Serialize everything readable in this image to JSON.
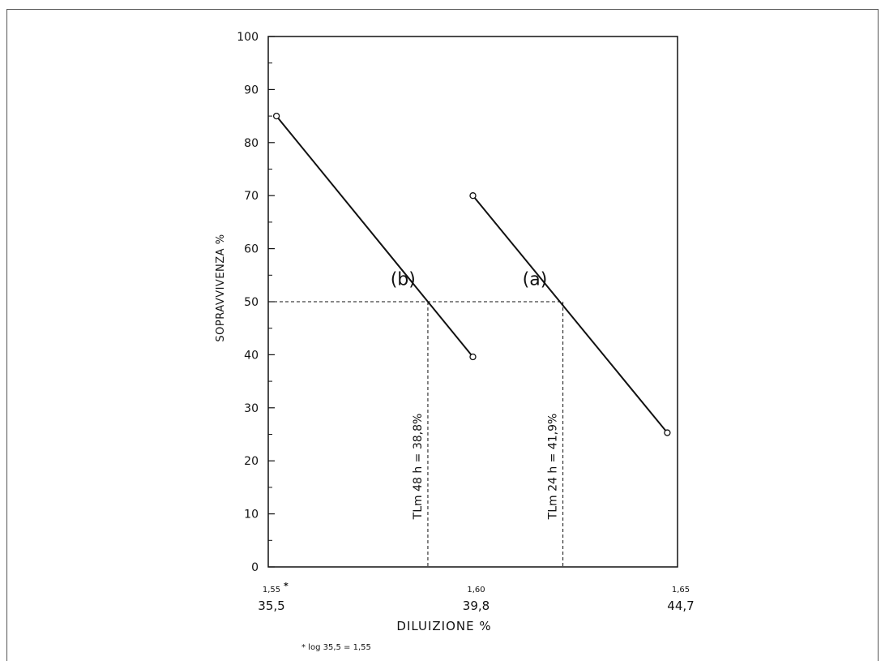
{
  "chart_data": {
    "type": "line",
    "xlabel": "DILUIZIONE %",
    "ylabel": "SOPRAVVIVENZA %",
    "x_scale": "log10",
    "xlim": [
      1.55,
      1.65
    ],
    "ylim": [
      0,
      100
    ],
    "y_ticks": [
      0,
      10,
      20,
      30,
      40,
      50,
      60,
      70,
      80,
      90,
      100
    ],
    "x_ticks": [
      {
        "log": 1.55,
        "log_label": "1,55",
        "marker": "*",
        "value_label": "35,5"
      },
      {
        "log": 1.6,
        "log_label": "1,60",
        "marker": "",
        "value_label": "39,8"
      },
      {
        "log": 1.65,
        "log_label": "1,65",
        "marker": "",
        "value_label": "44,7"
      }
    ],
    "series": [
      {
        "name": "(b)",
        "points": [
          {
            "x": 1.552,
            "y": 85
          },
          {
            "x": 1.6,
            "y": 39.6
          }
        ]
      },
      {
        "name": "(a)",
        "points": [
          {
            "x": 1.6,
            "y": 70
          },
          {
            "x": 1.6475,
            "y": 25.3
          }
        ]
      }
    ],
    "reference_lines": [
      {
        "label": "TLm 48 h = 38,8%",
        "x": 1.589,
        "y": 50
      },
      {
        "label": "TLm 24 h = 41,9%",
        "x": 1.622,
        "y": 50
      }
    ],
    "footnote": "* log 35,5 = 1,55"
  }
}
